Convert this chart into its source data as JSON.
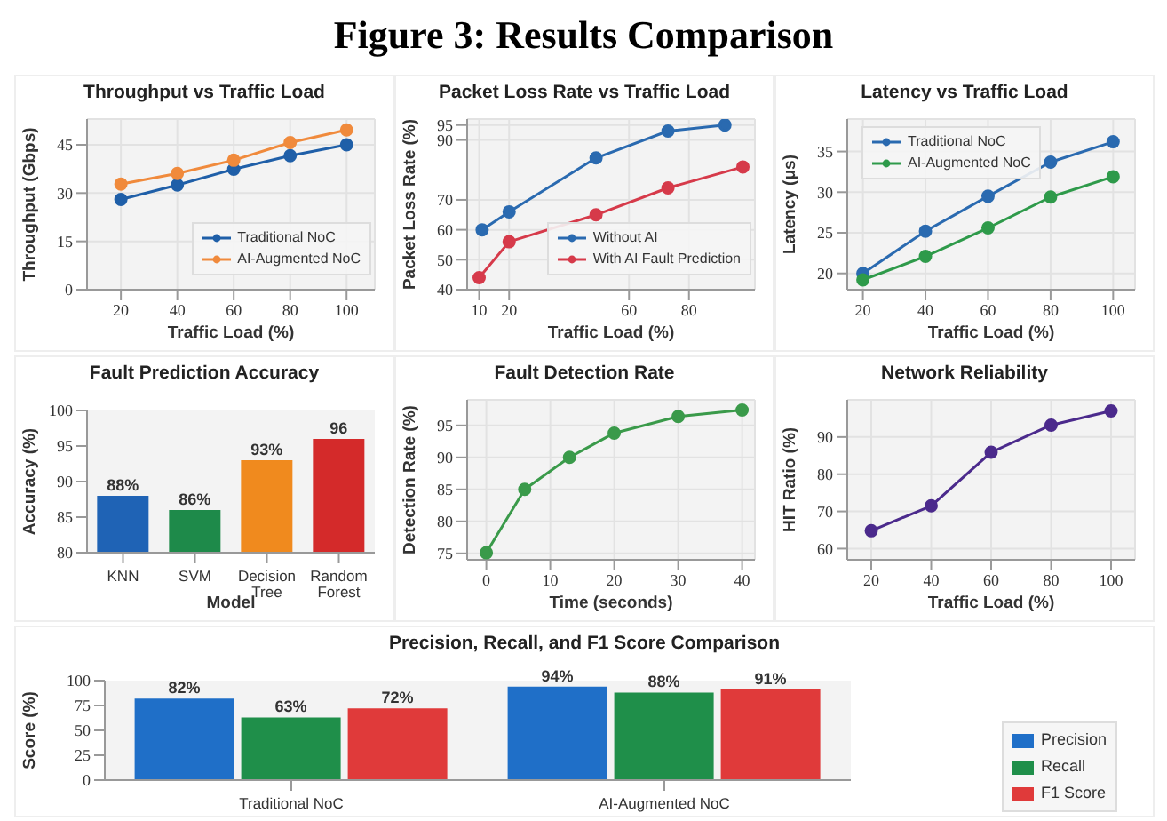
{
  "chart_data": [
    {
      "type": "other",
      "title": "Figure 3: Results Comparison"
    },
    {
      "type": "line",
      "title": "Throughput vs Traffic Load",
      "xlabel": "Traffic Load (%)",
      "ylabel": "Throughput (Gbps)",
      "x": [
        20,
        40,
        60,
        80,
        100
      ],
      "xlim": [
        8,
        110
      ],
      "xticks": [
        20,
        40,
        60,
        80,
        100
      ],
      "ylim": [
        0,
        53
      ],
      "yticks": [
        0,
        15,
        30,
        45
      ],
      "grid": true,
      "legend": "bottom right",
      "marker": "circle",
      "series": [
        {
          "name": "Traditional NoC",
          "color": "#1f5fa8",
          "values": [
            28,
            32.5,
            37.4,
            41.6,
            45
          ]
        },
        {
          "name": "AI-Augmented NoC",
          "color": "#f08a3c",
          "values": [
            32.8,
            36.1,
            40.2,
            45.7,
            49.6
          ]
        }
      ]
    },
    {
      "type": "line",
      "title": "Packet Loss Rate vs Traffic Load",
      "xlabel": "Traffic Load (%)",
      "ylabel": "Packet Loss Rate (%)",
      "xlim": [
        6,
        102
      ],
      "xticks": [
        10,
        20,
        60,
        80
      ],
      "ylim": [
        40,
        97
      ],
      "yticks": [
        40,
        50,
        60,
        70,
        90,
        95
      ],
      "grid": true,
      "legend": "bottom right",
      "marker": "circle",
      "series": [
        {
          "name": "Without AI",
          "color": "#2a6ab0",
          "x": [
            11,
            20,
            49,
            73,
            92
          ],
          "values": [
            60,
            66,
            84,
            93,
            95
          ]
        },
        {
          "name": "With AI Fault Prediction",
          "color": "#d63a4a",
          "x": [
            10,
            20,
            49,
            73,
            98
          ],
          "values": [
            44,
            56,
            65,
            74,
            81
          ]
        }
      ]
    },
    {
      "type": "line",
      "title": "Latency vs Traffic Load",
      "xlabel": "Traffic Load (%)",
      "ylabel": "Latency (μs)",
      "x": [
        20,
        40,
        60,
        80,
        100
      ],
      "xlim": [
        15,
        107
      ],
      "xticks": [
        20,
        40,
        60,
        80,
        100
      ],
      "ylim": [
        18,
        39
      ],
      "yticks": [
        20,
        25,
        30,
        35
      ],
      "grid": true,
      "legend": "top left",
      "marker": "circle",
      "series": [
        {
          "name": "Traditional NoC",
          "color": "#2a6ab0",
          "values": [
            20,
            25.2,
            29.5,
            33.7,
            36.2
          ]
        },
        {
          "name": "AI-Augmented NoC",
          "color": "#2e9a4a",
          "values": [
            19.2,
            22.1,
            25.6,
            29.4,
            31.9
          ]
        }
      ]
    },
    {
      "type": "bar",
      "title": "Fault Prediction Accuracy",
      "xlabel": "Model",
      "ylabel": "Accuracy (%)",
      "categories": [
        "KNN",
        "SVM",
        "Decision Tree",
        "Random Forest"
      ],
      "values": [
        88,
        86,
        93,
        96
      ],
      "colors": [
        "#1f63b5",
        "#1e8a4a",
        "#f08a1e",
        "#d42a2a"
      ],
      "value_labels": [
        "88%",
        "86%",
        "93%",
        "96"
      ],
      "ylim": [
        80,
        100
      ],
      "yticks": [
        80,
        85,
        90,
        95,
        100
      ]
    },
    {
      "type": "line",
      "title": "Fault Detection Rate",
      "xlabel": "Time (seconds)",
      "ylabel": "Detection Rate (%)",
      "x": [
        0,
        6,
        13,
        20,
        30,
        40
      ],
      "xlim": [
        -3,
        42
      ],
      "xticks": [
        0,
        10,
        20,
        30,
        40
      ],
      "ylim": [
        74,
        99
      ],
      "yticks": [
        75,
        80,
        85,
        90,
        95
      ],
      "grid": true,
      "marker": "circle",
      "series": [
        {
          "color": "#3a9a4a",
          "values": [
            75.1,
            85,
            90,
            93.8,
            96.4,
            97.4
          ]
        }
      ]
    },
    {
      "type": "line",
      "title": "Network Reliability",
      "xlabel": "Traffic Load (%)",
      "ylabel": "HIT Ratio (%)",
      "x": [
        20,
        40,
        60,
        80,
        100
      ],
      "xlim": [
        12,
        108
      ],
      "xticks": [
        20,
        40,
        60,
        80,
        100
      ],
      "ylim": [
        57,
        100
      ],
      "yticks": [
        60,
        70,
        80,
        90
      ],
      "grid": true,
      "marker": "circle",
      "series": [
        {
          "color": "#4b2a8c",
          "values": [
            64.8,
            71.5,
            85.9,
            93.2,
            97
          ]
        }
      ]
    },
    {
      "type": "bar",
      "title": "Precision, Recall, and F1 Score Comparison",
      "ylabel": "Score (%)",
      "categories": [
        "Traditional NoC",
        "AI-Augmented NoC"
      ],
      "ylim": [
        0,
        100
      ],
      "yticks": [
        0,
        25,
        50,
        75,
        100
      ],
      "legend": "right",
      "series": [
        {
          "name": "Precision",
          "color": "#1f6fc8",
          "values": [
            82,
            94
          ],
          "value_labels": [
            "82%",
            "94%"
          ]
        },
        {
          "name": "Recall",
          "color": "#1f8f4a",
          "values": [
            63,
            88
          ],
          "value_labels": [
            "63%",
            "88%"
          ]
        },
        {
          "name": "F1 Score",
          "color": "#e03a3a",
          "values": [
            72,
            91
          ],
          "value_labels": [
            "72%",
            "91%"
          ]
        }
      ]
    }
  ]
}
